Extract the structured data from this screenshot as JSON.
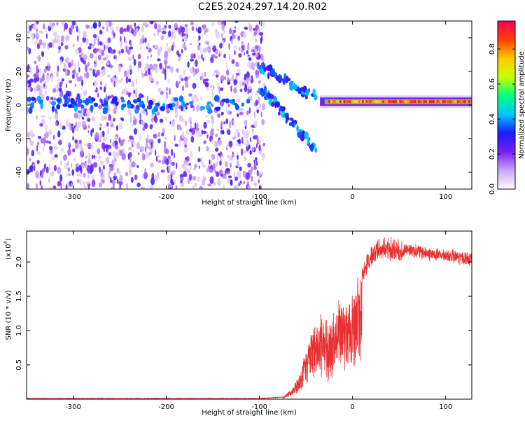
{
  "title": "C2E5.2024.297.14.20.R02",
  "chart_data": [
    {
      "type": "heatmap",
      "xlabel": "Height of straight line (km)",
      "ylabel": "Frequency (Hz)",
      "xlim": [
        -350,
        128
      ],
      "ylim": [
        -50,
        50
      ],
      "x_ticks": [
        -300,
        -200,
        -100,
        0,
        100
      ],
      "y_ticks": [
        -40,
        -20,
        0,
        20,
        40
      ],
      "colorbar": {
        "label": "Normalized spectral amplitude",
        "range": [
          0,
          0.96
        ],
        "ticks": [
          0,
          0.2,
          0.4,
          0.6,
          0.8
        ],
        "colors": [
          "#ffffff",
          "#c9a6f2",
          "#7a1cf0",
          "#1b1bff",
          "#00c8ff",
          "#00ff80",
          "#c8ff00",
          "#ffc800",
          "#ff4000",
          "#ff0060"
        ]
      },
      "features": {
        "noise_region_x": [
          -350,
          -95
        ],
        "carrier_frequency_hz": 2,
        "carrier_start_x": -35,
        "doppler_branches": [
          {
            "x": [
              -100,
              -80,
              -60,
              -40
            ],
            "y": [
              22,
              18,
              10,
              5
            ]
          },
          {
            "x": [
              -100,
              -85,
              -70,
              -55,
              -40
            ],
            "y": [
              10,
              2,
              -8,
              -16,
              -27
            ]
          }
        ]
      }
    },
    {
      "type": "line",
      "xlabel": "Height of straight line (km)",
      "ylabel": "SNR (10 * v/v)",
      "yunit_label": "(x10",
      "yunit_exp": "4",
      "xlim": [
        -350,
        128
      ],
      "ylim": [
        0,
        2.45
      ],
      "x_ticks": [
        -300,
        -200,
        -100,
        0,
        100
      ],
      "y_ticks": [
        0.5,
        1.0,
        1.5,
        2.0
      ],
      "line_color": "#e83030",
      "envelope": {
        "x": [
          -350,
          -100,
          -75,
          -65,
          -55,
          -45,
          -35,
          -25,
          -15,
          -5,
          5,
          15,
          25,
          35,
          45,
          55,
          70,
          85,
          100,
          115,
          128
        ],
        "y": [
          0.01,
          0.01,
          0.03,
          0.15,
          0.45,
          0.95,
          1.25,
          1.1,
          1.5,
          1.35,
          1.75,
          2.05,
          2.25,
          2.32,
          2.28,
          2.22,
          2.18,
          2.14,
          2.12,
          2.09,
          2.06
        ]
      }
    }
  ]
}
